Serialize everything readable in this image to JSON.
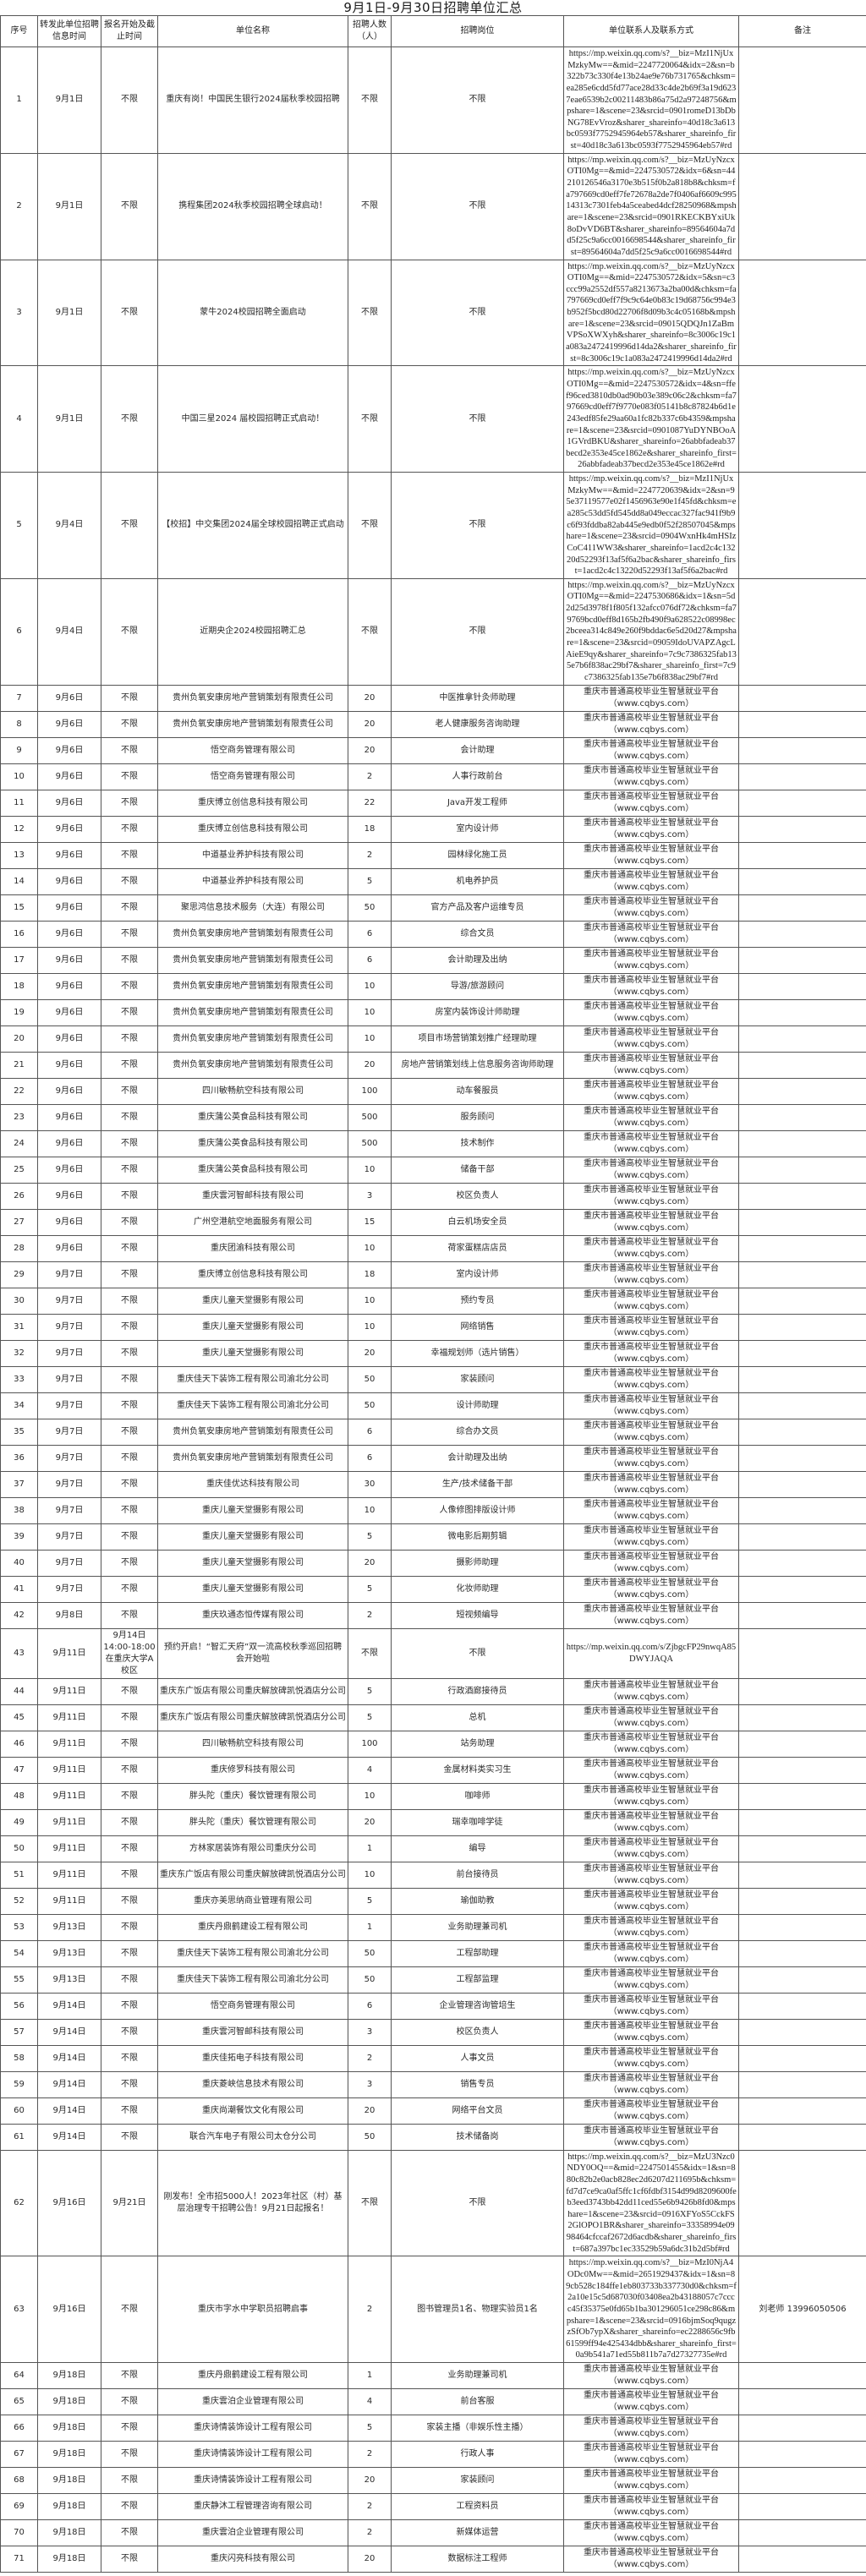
{
  "title": "9月1日-9月30日招聘单位汇总",
  "columns": [
    "序号",
    "转发此单位招聘信息时间",
    "报名开始及截止时间",
    "单位名称",
    "招聘人数\n（人）",
    "招聘岗位",
    "单位联系人及联系方式",
    "备注"
  ],
  "platform_contact": "重庆市普通高校毕业生智慧就业平台（www.cqbys.com）",
  "rows": [
    {
      "no": "1",
      "forward": "9月1日",
      "register": "不限",
      "company": "重庆有岗！中国民生银行2024届秋季校园招聘",
      "count": "不限",
      "position": "不限",
      "contact": "https://mp.weixin.qq.com/s?__biz=MzI1NjUxMzkyMw==&mid=2247720064&idx=2&sn=b322b73c330f4e13b24ae9e76b731765&chksm=ea285e6cdd5fd77ace28d33c4de2b69f3a19d6237eae6539b2c00211483b86a75d2a97248756&mpshare=1&scene=23&srcid=0901romeD13bDbNG78EvVroz&sharer_shareinfo=40d18c3a613bc0593f7752945964eb57&sharer_shareinfo_first=40d18c3a613bc0593f7752945964eb57#rd",
      "note": ""
    },
    {
      "no": "2",
      "forward": "9月1日",
      "register": "不限",
      "company": "携程集团2024秋季校园招聘全球启动！",
      "count": "不限",
      "position": "不限",
      "contact": "https://mp.weixin.qq.com/s?__biz=MzUyNzcxOTI0Mg==&mid=2247530572&idx=6&sn=44210126546a3170e3b515f0b2a818b8&chksm=fa797669cd0eff7fe72678a2de7f0406af6609c99514313c7301feb4a5ceabed4dcf28250968&mpshare=1&scene=23&srcid=0901RKECKBYxiUk8oDvVD6BT&sharer_shareinfo=89564604a7dd5f25c9a6cc0016698544&sharer_shareinfo_first=89564604a7dd5f25c9a6cc0016698544#rd",
      "note": ""
    },
    {
      "no": "3",
      "forward": "9月1日",
      "register": "不限",
      "company": "蒙牛2024校园招聘全面启动",
      "count": "不限",
      "position": "不限",
      "contact": "https://mp.weixin.qq.com/s?__biz=MzUyNzcxOTI0Mg==&mid=2247530572&idx=5&sn=c3ccc99a2552df557a8213673a2ba00d&chksm=fa797669cd0eff7f9c9c64e0b83c19d68756c994e3b952f5bcd80d22706f8d09b3c4c05168b&mpshare=1&scene=23&srcid=09015QDQJn1ZaBmVPSoXWXyh&sharer_shareinfo=8c3006c19c1a083a2472419996d14da2&sharer_shareinfo_first=8c3006c19c1a083a2472419996d14da2#rd",
      "note": ""
    },
    {
      "no": "4",
      "forward": "9月1日",
      "register": "不限",
      "company": "中国三星2024 届校园招聘正式启动！",
      "count": "不限",
      "position": "不限",
      "contact": "https://mp.weixin.qq.com/s?__biz=MzUyNzcxOTI0Mg==&mid=2247530572&idx=4&sn=ffef96ced3810db0ad90b03e389c06c2&chksm=fa797669cd0eff7f9770e083f05141b8c87824b6d1e243edf85fe29aa60a1fc82b337c6b4359&mpshare=1&scene=23&srcid=0901087YuDYNBOoA1GVrdBKU&sharer_shareinfo=26abbfadeab37becd2e353e45ce1862e&sharer_shareinfo_first=26abbfadeab37becd2e353e45ce1862e#rd",
      "note": ""
    },
    {
      "no": "5",
      "forward": "9月4日",
      "register": "不限",
      "company": "【校招】中交集团2024届全球校园招聘正式启动",
      "count": "不限",
      "position": "不限",
      "contact": "https://mp.weixin.qq.com/s?__biz=MzI1NjUxMzkyMw==&mid=2247720639&idx=2&sn=95e37119577e02f1456963e90e1f45fd&chksm=ea285c53dd5fd545dd8a049eccac327fac941f9b9c6f93fddba82ab445e9edb0f52f28507045&mpshare=1&scene=23&srcid=0904WxnHk4mHSIzCoC411WW3&sharer_shareinfo=1acd2c4c13220d52293f13af5f6a2bac&sharer_shareinfo_first=1acd2c4c13220d52293f13af5f6a2bac#rd",
      "note": ""
    },
    {
      "no": "6",
      "forward": "9月4日",
      "register": "不限",
      "company": "近期央企2024校园招聘汇总",
      "count": "不限",
      "position": "不限",
      "contact": "https://mp.weixin.qq.com/s?__biz=MzUyNzcxOTI0Mg==&mid=2247530686&idx=1&sn=5d2d25d3978f1f805f132afcc076df72&chksm=fa79769bcd0eff8d165b2fb490f9a628522c08998ec2bceea314c849e260f9bddac6e5d20d27&mpshare=1&scene=23&srcid=09059IdoUVAPZAgcLAieE9qy&sharer_shareinfo=7c9c7386325fab135e7b6f838ac29bf7&sharer_shareinfo_first=7c9c7386325fab135e7b6f838ac29bf7#rd",
      "note": ""
    },
    {
      "no": "7",
      "forward": "9月6日",
      "register": "不限",
      "company": "贵州负氧安康房地产营销策划有限责任公司",
      "count": "20",
      "position": "中医推拿针灸师助理",
      "contact": "@platform",
      "note": ""
    },
    {
      "no": "8",
      "forward": "9月6日",
      "register": "不限",
      "company": "贵州负氧安康房地产营销策划有限责任公司",
      "count": "20",
      "position": "老人健康服务咨询助理",
      "contact": "@platform",
      "note": ""
    },
    {
      "no": "9",
      "forward": "9月6日",
      "register": "不限",
      "company": "悟空商务管理有限公司",
      "count": "20",
      "position": "会计助理",
      "contact": "@platform",
      "note": ""
    },
    {
      "no": "10",
      "forward": "9月6日",
      "register": "不限",
      "company": "悟空商务管理有限公司",
      "count": "2",
      "position": "人事行政前台",
      "contact": "@platform",
      "note": ""
    },
    {
      "no": "11",
      "forward": "9月6日",
      "register": "不限",
      "company": "重庆博立创信息科技有限公司",
      "count": "22",
      "position": "Java开发工程师",
      "contact": "@platform",
      "note": ""
    },
    {
      "no": "12",
      "forward": "9月6日",
      "register": "不限",
      "company": "重庆博立创信息科技有限公司",
      "count": "18",
      "position": "室内设计师",
      "contact": "@platform",
      "note": ""
    },
    {
      "no": "13",
      "forward": "9月6日",
      "register": "不限",
      "company": "中道基业养护科技有限公司",
      "count": "2",
      "position": "园林绿化施工员",
      "contact": "@platform",
      "note": ""
    },
    {
      "no": "14",
      "forward": "9月6日",
      "register": "不限",
      "company": "中道基业养护科技有限公司",
      "count": "5",
      "position": "机电养护员",
      "contact": "@platform",
      "note": ""
    },
    {
      "no": "15",
      "forward": "9月6日",
      "register": "不限",
      "company": "聚思鸿信息技术服务（大连）有限公司",
      "count": "50",
      "position": "官方产品及客户运维专员",
      "contact": "@platform",
      "note": ""
    },
    {
      "no": "16",
      "forward": "9月6日",
      "register": "不限",
      "company": "贵州负氧安康房地产营销策划有限责任公司",
      "count": "6",
      "position": "综合文员",
      "contact": "@platform",
      "note": ""
    },
    {
      "no": "17",
      "forward": "9月6日",
      "register": "不限",
      "company": "贵州负氧安康房地产营销策划有限责任公司",
      "count": "6",
      "position": "会计助理及出纳",
      "contact": "@platform",
      "note": ""
    },
    {
      "no": "18",
      "forward": "9月6日",
      "register": "不限",
      "company": "贵州负氧安康房地产营销策划有限责任公司",
      "count": "10",
      "position": "导游/旅游顾问",
      "contact": "@platform",
      "note": ""
    },
    {
      "no": "19",
      "forward": "9月6日",
      "register": "不限",
      "company": "贵州负氧安康房地产营销策划有限责任公司",
      "count": "10",
      "position": "房室内装饰设计师助理",
      "contact": "@platform",
      "note": ""
    },
    {
      "no": "20",
      "forward": "9月6日",
      "register": "不限",
      "company": "贵州负氧安康房地产营销策划有限责任公司",
      "count": "10",
      "position": "项目市场营销策划推广经理助理",
      "contact": "@platform",
      "note": ""
    },
    {
      "no": "21",
      "forward": "9月6日",
      "register": "不限",
      "company": "贵州负氧安康房地产营销策划有限责任公司",
      "count": "20",
      "position": "房地产营销策划线上信息服务咨询师助理",
      "contact": "@platform",
      "note": ""
    },
    {
      "no": "22",
      "forward": "9月6日",
      "register": "不限",
      "company": "四川敏畅航空科技有限公司",
      "count": "100",
      "position": "动车餐服员",
      "contact": "@platform",
      "note": ""
    },
    {
      "no": "23",
      "forward": "9月6日",
      "register": "不限",
      "company": "重庆蒲公英食品科技有限公司",
      "count": "500",
      "position": "服务顾问",
      "contact": "@platform",
      "note": ""
    },
    {
      "no": "24",
      "forward": "9月6日",
      "register": "不限",
      "company": "重庆蒲公英食品科技有限公司",
      "count": "500",
      "position": "技术制作",
      "contact": "@platform",
      "note": ""
    },
    {
      "no": "25",
      "forward": "9月6日",
      "register": "不限",
      "company": "重庆蒲公英食品科技有限公司",
      "count": "10",
      "position": "储备干部",
      "contact": "@platform",
      "note": ""
    },
    {
      "no": "26",
      "forward": "9月6日",
      "register": "不限",
      "company": "重庆雲河智邮科技有限公司",
      "count": "3",
      "position": "校区负责人",
      "contact": "@platform",
      "note": ""
    },
    {
      "no": "27",
      "forward": "9月6日",
      "register": "不限",
      "company": "广州空港航空地面服务有限公司",
      "count": "15",
      "position": "白云机场安全员",
      "contact": "@platform",
      "note": ""
    },
    {
      "no": "28",
      "forward": "9月6日",
      "register": "不限",
      "company": "重庆团渝科技有限公司",
      "count": "10",
      "position": "荷家蛋糕店店员",
      "contact": "@platform",
      "note": ""
    },
    {
      "no": "29",
      "forward": "9月7日",
      "register": "不限",
      "company": "重庆博立创信息科技有限公司",
      "count": "18",
      "position": "室内设计师",
      "contact": "@platform",
      "note": ""
    },
    {
      "no": "30",
      "forward": "9月7日",
      "register": "不限",
      "company": "重庆儿童天堂摄影有限公司",
      "count": "10",
      "position": "预约专员",
      "contact": "@platform",
      "note": ""
    },
    {
      "no": "31",
      "forward": "9月7日",
      "register": "不限",
      "company": "重庆儿童天堂摄影有限公司",
      "count": "10",
      "position": "网络销售",
      "contact": "@platform",
      "note": ""
    },
    {
      "no": "32",
      "forward": "9月7日",
      "register": "不限",
      "company": "重庆儿童天堂摄影有限公司",
      "count": "20",
      "position": "幸福规划师（选片销售）",
      "contact": "@platform",
      "note": ""
    },
    {
      "no": "33",
      "forward": "9月7日",
      "register": "不限",
      "company": "重庆佳天下装饰工程有限公司渝北分公司",
      "count": "50",
      "position": "家装顾问",
      "contact": "@platform",
      "note": ""
    },
    {
      "no": "34",
      "forward": "9月7日",
      "register": "不限",
      "company": "重庆佳天下装饰工程有限公司渝北分公司",
      "count": "50",
      "position": "设计师助理",
      "contact": "@platform",
      "note": ""
    },
    {
      "no": "35",
      "forward": "9月7日",
      "register": "不限",
      "company": "贵州负氧安康房地产营销策划有限责任公司",
      "count": "6",
      "position": "综合办文员",
      "contact": "@platform",
      "note": ""
    },
    {
      "no": "36",
      "forward": "9月7日",
      "register": "不限",
      "company": "贵州负氧安康房地产营销策划有限责任公司",
      "count": "6",
      "position": "会计助理及出纳",
      "contact": "@platform",
      "note": ""
    },
    {
      "no": "37",
      "forward": "9月7日",
      "register": "不限",
      "company": "重庆佳优达科技有限公司",
      "count": "30",
      "position": "生产/技术储备干部",
      "contact": "@platform",
      "note": ""
    },
    {
      "no": "38",
      "forward": "9月7日",
      "register": "不限",
      "company": "重庆儿童天堂摄影有限公司",
      "count": "10",
      "position": "人像修图排版设计师",
      "contact": "@platform",
      "note": ""
    },
    {
      "no": "39",
      "forward": "9月7日",
      "register": "不限",
      "company": "重庆儿童天堂摄影有限公司",
      "count": "5",
      "position": "微电影后期剪辑",
      "contact": "@platform",
      "note": ""
    },
    {
      "no": "40",
      "forward": "9月7日",
      "register": "不限",
      "company": "重庆儿童天堂摄影有限公司",
      "count": "20",
      "position": "摄影师助理",
      "contact": "@platform",
      "note": ""
    },
    {
      "no": "41",
      "forward": "9月7日",
      "register": "不限",
      "company": "重庆儿童天堂摄影有限公司",
      "count": "5",
      "position": "化妆师助理",
      "contact": "@platform",
      "note": ""
    },
    {
      "no": "42",
      "forward": "9月8日",
      "register": "不限",
      "company": "重庆玖通态恒传媒有限公司",
      "count": "2",
      "position": "短视频编导",
      "contact": "@platform",
      "note": ""
    },
    {
      "no": "43",
      "forward": "9月11日",
      "register": "9月14日\n14:00-18:00\n在重庆大学A校区",
      "company": "预约开启！“智汇天府”双一流高校秋季巡回招聘会开始啦",
      "count": "不限",
      "position": "不限",
      "contact": "https://mp.weixin.qq.com/s/ZjbgcFP29nwqA85DWYJAQA",
      "note": ""
    },
    {
      "no": "44",
      "forward": "9月11日",
      "register": "不限",
      "company": "重庆东广饭店有限公司重庆解放碑凯悦酒店分公司",
      "count": "5",
      "position": "行政酒廊接待员",
      "contact": "@platform",
      "note": ""
    },
    {
      "no": "45",
      "forward": "9月11日",
      "register": "不限",
      "company": "重庆东广饭店有限公司重庆解放碑凯悦酒店分公司",
      "count": "5",
      "position": "总机",
      "contact": "@platform",
      "note": ""
    },
    {
      "no": "46",
      "forward": "9月11日",
      "register": "不限",
      "company": "四川敏畅航空科技有限公司",
      "count": "100",
      "position": "站务助理",
      "contact": "@platform",
      "note": ""
    },
    {
      "no": "47",
      "forward": "9月11日",
      "register": "不限",
      "company": "重庆修罗科技有限公司",
      "count": "4",
      "position": "金属材料类实习生",
      "contact": "@platform",
      "note": ""
    },
    {
      "no": "48",
      "forward": "9月11日",
      "register": "不限",
      "company": "胖头陀（重庆）餐饮管理有限公司",
      "count": "10",
      "position": "咖啡师",
      "contact": "@platform",
      "note": ""
    },
    {
      "no": "49",
      "forward": "9月11日",
      "register": "不限",
      "company": "胖头陀（重庆）餐饮管理有限公司",
      "count": "20",
      "position": "瑞幸咖啡学徒",
      "contact": "@platform",
      "note": ""
    },
    {
      "no": "50",
      "forward": "9月11日",
      "register": "不限",
      "company": "方林家居装饰有限公司重庆分公司",
      "count": "1",
      "position": "编导",
      "contact": "@platform",
      "note": ""
    },
    {
      "no": "51",
      "forward": "9月11日",
      "register": "不限",
      "company": "重庆东广饭店有限公司重庆解放碑凯悦酒店分公司",
      "count": "10",
      "position": "前台接待员",
      "contact": "@platform",
      "note": ""
    },
    {
      "no": "52",
      "forward": "9月11日",
      "register": "不限",
      "company": "重庆亦美思纳商业管理有限公司",
      "count": "5",
      "position": "瑜伽助教",
      "contact": "@platform",
      "note": ""
    },
    {
      "no": "53",
      "forward": "9月13日",
      "register": "不限",
      "company": "重庆丹鼎鹤建设工程有限公司",
      "count": "1",
      "position": "业务助理兼司机",
      "contact": "@platform",
      "note": ""
    },
    {
      "no": "54",
      "forward": "9月13日",
      "register": "不限",
      "company": "重庆佳天下装饰工程有限公司渝北分公司",
      "count": "50",
      "position": "工程部助理",
      "contact": "@platform",
      "note": ""
    },
    {
      "no": "55",
      "forward": "9月13日",
      "register": "不限",
      "company": "重庆佳天下装饰工程有限公司渝北分公司",
      "count": "50",
      "position": "工程部监理",
      "contact": "@platform",
      "note": ""
    },
    {
      "no": "56",
      "forward": "9月14日",
      "register": "不限",
      "company": "悟空商务管理有限公司",
      "count": "6",
      "position": "企业管理咨询管培生",
      "contact": "@platform",
      "note": ""
    },
    {
      "no": "57",
      "forward": "9月14日",
      "register": "不限",
      "company": "重庆雲河智邮科技有限公司",
      "count": "3",
      "position": "校区负责人",
      "contact": "@platform",
      "note": ""
    },
    {
      "no": "58",
      "forward": "9月14日",
      "register": "不限",
      "company": "重庆佳拓电子科技有限公司",
      "count": "2",
      "position": "人事文员",
      "contact": "@platform",
      "note": ""
    },
    {
      "no": "59",
      "forward": "9月14日",
      "register": "不限",
      "company": "重庆菱峡信息技术有限公司",
      "count": "3",
      "position": "销售专员",
      "contact": "@platform",
      "note": ""
    },
    {
      "no": "60",
      "forward": "9月14日",
      "register": "不限",
      "company": "重庆尚潮餐饮文化有限公司",
      "count": "20",
      "position": "网络平台文员",
      "contact": "@platform",
      "note": ""
    },
    {
      "no": "61",
      "forward": "9月14日",
      "register": "不限",
      "company": "联合汽车电子有限公司太仓分公司",
      "count": "50",
      "position": "技术储备岗",
      "contact": "@platform",
      "note": ""
    },
    {
      "no": "62",
      "forward": "9月16日",
      "register": "9月21日",
      "company": "刚发布！全市招5000人！2023年社区（村）基层治理专干招聘公告！9月21日起报名！",
      "count": "不限",
      "position": "不限",
      "contact": "https://mp.weixin.qq.com/s?__biz=MzU3Nzc0NDY0OQ==&mid=2247501455&idx=1&sn=880c82b2e0acb828ec2d6207d211695b&chksm=fd7d7ce9ca0af5ffc1cf6fdbf3154d99d8209600feb3eed3743bb42dd11ced55e6b9426b8fd0&mpshare=1&scene=23&srcid=0916XFYoS5CckFS2GlOPO1BR&sharer_shareinfo=33358994e0998464cfccaf2672d6acdb&sharer_shareinfo_first=687a397bc1ec33529b59a6dc31b2d5bf#rd",
      "note": ""
    },
    {
      "no": "63",
      "forward": "9月16日",
      "register": "不限",
      "company": "重庆市字水中学职员招聘启事",
      "count": "2",
      "position": "图书管理员1名、物理实验员1名",
      "contact": "https://mp.weixin.qq.com/s?__biz=MzI0NjA4ODc0Mw==&mid=2651929437&idx=1&sn=89cb528c184ffe1eb803733b337730d0&chksm=f2a10e15c5d687030f03408ea2b43188057c7cccc45f35375e0fd65b1ba301296051ce298c86&mpshare=1&scene=23&srcid=0916bjmSoq9qugzzSfOb7ypX&sharer_shareinfo=ec2288656c9fb61599ff94e425434dbb&sharer_shareinfo_first=0a9b541a71ed55b811b7a7d27327735e#rd",
      "note": "刘老师  13996050506"
    },
    {
      "no": "64",
      "forward": "9月18日",
      "register": "不限",
      "company": "重庆丹鼎鹤建设工程有限公司",
      "count": "1",
      "position": "业务助理兼司机",
      "contact": "@platform",
      "note": ""
    },
    {
      "no": "65",
      "forward": "9月18日",
      "register": "不限",
      "company": "重庆雲泊企业管理有限公司",
      "count": "4",
      "position": "前台客服",
      "contact": "@platform",
      "note": ""
    },
    {
      "no": "66",
      "forward": "9月18日",
      "register": "不限",
      "company": "重庆诗情装饰设计工程有限公司",
      "count": "5",
      "position": "家装主播（非娱乐性主播）",
      "contact": "@platform",
      "note": ""
    },
    {
      "no": "67",
      "forward": "9月18日",
      "register": "不限",
      "company": "重庆诗情装饰设计工程有限公司",
      "count": "2",
      "position": "行政人事",
      "contact": "@platform",
      "note": ""
    },
    {
      "no": "68",
      "forward": "9月18日",
      "register": "不限",
      "company": "重庆诗情装饰设计工程有限公司",
      "count": "20",
      "position": "家装顾问",
      "contact": "@platform",
      "note": ""
    },
    {
      "no": "69",
      "forward": "9月18日",
      "register": "不限",
      "company": "重庆静沐工程管理咨询有限公司",
      "count": "2",
      "position": "工程资料员",
      "contact": "@platform",
      "note": ""
    },
    {
      "no": "70",
      "forward": "9月18日",
      "register": "不限",
      "company": "重庆雲泊企业管理有限公司",
      "count": "2",
      "position": "新媒体运营",
      "contact": "@platform",
      "note": ""
    },
    {
      "no": "71",
      "forward": "9月18日",
      "register": "不限",
      "company": "重庆闪亮科技有限公司",
      "count": "20",
      "position": "数据标注工程师",
      "contact": "@platform",
      "note": ""
    }
  ]
}
